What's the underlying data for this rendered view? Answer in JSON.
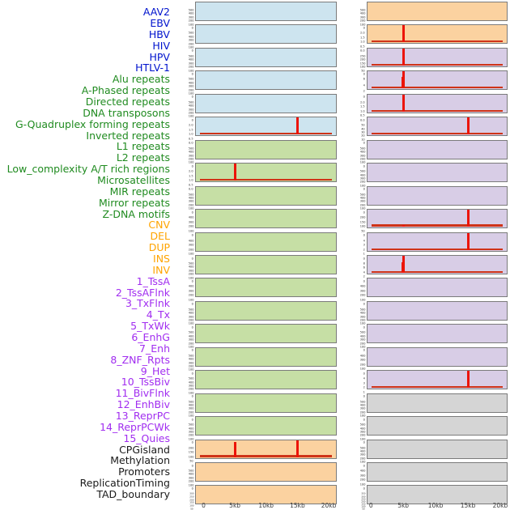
{
  "figure_title": "",
  "colors": {
    "label_virus": "#0013cd",
    "label_repeat": "#208b20",
    "label_variant": "#ffa400",
    "label_chromatin": "#a12df0",
    "label_other": "#1a1a1a",
    "panel_virus": "#cde4ef",
    "panel_repeat": "#c6dfa5",
    "panel_variant": "#fbd2a0",
    "panel_chromatin": "#d8cde6",
    "panel_other": "#d5d5d5",
    "spike_red": "#ec1408",
    "baseline_red": "#cf3318",
    "panel_border": "#7b7b7b",
    "axis_text": "#3c3c3c"
  },
  "chart_data": {
    "type": "bar",
    "description": "Small-multiple density tracks over a 0-20kb window; two panel columns read column-major (tracks 1-22 left, 23-44 right); red bars are feature density spikes, thin red line is near-zero baseline",
    "x_unit": "kb",
    "x_range": [
      0,
      20
    ],
    "x_ticks": [
      "0",
      "5kb",
      "10kb",
      "15kb",
      "20kb"
    ],
    "grid": false,
    "legend_position": "left-label-column",
    "tracks": [
      {
        "label": "AAV2",
        "group": "virus",
        "y_ticks": [
          "500",
          "400",
          "300",
          "200",
          "100",
          "0"
        ],
        "spikes": [],
        "baseline": false
      },
      {
        "label": "EBV",
        "group": "virus",
        "y_ticks": [
          "500",
          "400",
          "300",
          "200",
          "100",
          "0"
        ],
        "spikes": [],
        "baseline": false
      },
      {
        "label": "HBV",
        "group": "virus",
        "y_ticks": [
          "500",
          "400",
          "300",
          "200",
          "100",
          "0"
        ],
        "spikes": [],
        "baseline": false
      },
      {
        "label": "HIV",
        "group": "virus",
        "y_ticks": [
          "500",
          "400",
          "300",
          "200",
          "100",
          "0"
        ],
        "spikes": [],
        "baseline": false
      },
      {
        "label": "HPV",
        "group": "virus",
        "y_ticks": [
          "500",
          "400",
          "300",
          "200",
          "100",
          "0"
        ],
        "spikes": [],
        "baseline": false
      },
      {
        "label": "HTLV-1",
        "group": "virus",
        "y_ticks": [
          "2.0",
          "1.5",
          "1.0",
          "0.5",
          "0.0"
        ],
        "spikes": [
          {
            "x_kb": 15,
            "value": 2.0
          }
        ],
        "baseline": true
      },
      {
        "label": "Alu repeats",
        "group": "repeat",
        "y_ticks": [
          "500",
          "400",
          "300",
          "200",
          "100",
          "0"
        ],
        "spikes": [],
        "baseline": false
      },
      {
        "label": "A-Phased repeats",
        "group": "repeat",
        "y_ticks": [
          "2.0",
          "1.5",
          "1.0",
          "0.5",
          "0.0"
        ],
        "spikes": [
          {
            "x_kb": 5,
            "value": 2.0
          }
        ],
        "baseline": true
      },
      {
        "label": "Directed repeats",
        "group": "repeat",
        "y_ticks": [
          "500",
          "400",
          "300",
          "200",
          "100",
          "0"
        ],
        "spikes": [],
        "baseline": false
      },
      {
        "label": "DNA transposons",
        "group": "repeat",
        "y_ticks": [
          "400",
          "300",
          "200",
          "100",
          "0"
        ],
        "spikes": [],
        "baseline": false
      },
      {
        "label": "G-Quadruplex forming repeats",
        "group": "repeat",
        "y_ticks": [
          "400",
          "300",
          "200",
          "100",
          "0"
        ],
        "spikes": [],
        "baseline": false
      },
      {
        "label": "Inverted repeats",
        "group": "repeat",
        "y_ticks": [
          "500",
          "400",
          "300",
          "200",
          "100",
          "0"
        ],
        "spikes": [],
        "baseline": false
      },
      {
        "label": "L1 repeats",
        "group": "repeat",
        "y_ticks": [
          "400",
          "300",
          "200",
          "100",
          "0"
        ],
        "spikes": [],
        "baseline": false
      },
      {
        "label": "L2 repeats",
        "group": "repeat",
        "y_ticks": [
          "500",
          "400",
          "300",
          "200",
          "100",
          "0"
        ],
        "spikes": [],
        "baseline": false
      },
      {
        "label": "Low_complexity A/T rich regions",
        "group": "repeat",
        "y_ticks": [
          "500",
          "400",
          "300",
          "200",
          "100",
          "0"
        ],
        "spikes": [],
        "baseline": false
      },
      {
        "label": "Microsatellites",
        "group": "repeat",
        "y_ticks": [
          "500",
          "400",
          "300",
          "200",
          "100",
          "0"
        ],
        "spikes": [],
        "baseline": false
      },
      {
        "label": "MIR repeats",
        "group": "repeat",
        "y_ticks": [
          "500",
          "400",
          "300",
          "200",
          "100",
          "0"
        ],
        "spikes": [],
        "baseline": false
      },
      {
        "label": "Mirror repeats",
        "group": "repeat",
        "y_ticks": [
          "500",
          "400",
          "300",
          "200",
          "100",
          "0"
        ],
        "spikes": [],
        "baseline": false
      },
      {
        "label": "Z-DNA motifs",
        "group": "repeat",
        "y_ticks": [
          "500",
          "400",
          "300",
          "200",
          "100",
          "0"
        ],
        "spikes": [],
        "baseline": false
      },
      {
        "label": "CNV",
        "group": "variant",
        "y_ticks": [
          "200",
          "150",
          "100",
          "50",
          "0"
        ],
        "spikes": [
          {
            "x_kb": 5,
            "value": 175
          },
          {
            "x_kb": 15,
            "value": 200
          }
        ],
        "baseline": true
      },
      {
        "label": "DEL",
        "group": "variant",
        "y_ticks": [
          "500",
          "400",
          "300",
          "200",
          "100",
          "0"
        ],
        "spikes": [],
        "baseline": false
      },
      {
        "label": "DUP",
        "group": "variant",
        "y_ticks": [
          "300",
          "250",
          "200",
          "150",
          "100",
          "50",
          "0"
        ],
        "spikes": [],
        "baseline": false
      },
      {
        "label": "INS",
        "group": "variant",
        "y_ticks": [
          "500",
          "400",
          "300",
          "200",
          "100",
          "0"
        ],
        "spikes": [],
        "baseline": false
      },
      {
        "label": "INV",
        "group": "variant",
        "y_ticks": [
          "2.0",
          "1.5",
          "1.0",
          "0.5",
          "0.0"
        ],
        "spikes": [
          {
            "x_kb": 5,
            "value": 2.0
          }
        ],
        "baseline": true
      },
      {
        "label": "1_TssA",
        "group": "chromatin",
        "y_ticks": [
          "250",
          "200",
          "150",
          "100",
          "50",
          "0"
        ],
        "spikes": [
          {
            "x_kb": 5,
            "value": 250
          }
        ],
        "baseline": true
      },
      {
        "label": "2_TssAFlnk",
        "group": "chromatin",
        "y_ticks": [
          "6",
          "4",
          "2",
          "0"
        ],
        "spikes": [
          {
            "x_kb": 4.8,
            "value": 4
          },
          {
            "x_kb": 5,
            "value": 6
          }
        ],
        "baseline": true
      },
      {
        "label": "3_TxFlnk",
        "group": "chromatin",
        "y_ticks": [
          "2.0",
          "1.5",
          "1.0",
          "0.5",
          "0.0"
        ],
        "spikes": [
          {
            "x_kb": 5,
            "value": 2.0
          }
        ],
        "baseline": true
      },
      {
        "label": "4_Tx",
        "group": "chromatin",
        "y_ticks": [
          "50",
          "40",
          "30",
          "20",
          "10",
          "0"
        ],
        "spikes": [
          {
            "x_kb": 15,
            "value": 50
          }
        ],
        "baseline": true
      },
      {
        "label": "5_TxWk",
        "group": "chromatin",
        "y_ticks": [
          "500",
          "400",
          "300",
          "200",
          "100",
          "0"
        ],
        "spikes": [],
        "baseline": false
      },
      {
        "label": "6_EnhG",
        "group": "chromatin",
        "y_ticks": [
          "500",
          "400",
          "300",
          "200",
          "100",
          "0"
        ],
        "spikes": [],
        "baseline": false
      },
      {
        "label": "7_Enh",
        "group": "chromatin",
        "y_ticks": [
          "500",
          "400",
          "300",
          "200",
          "100",
          "0"
        ],
        "spikes": [],
        "baseline": false
      },
      {
        "label": "8_ZNF_Rpts",
        "group": "chromatin",
        "y_ticks": [
          "200",
          "150",
          "100",
          "50",
          "0"
        ],
        "spikes": [
          {
            "x_kb": 5,
            "value": 15
          },
          {
            "x_kb": 15,
            "value": 200
          }
        ],
        "baseline": true
      },
      {
        "label": "9_Het",
        "group": "chromatin",
        "y_ticks": [
          "4",
          "3",
          "2",
          "1",
          "0"
        ],
        "spikes": [
          {
            "x_kb": 15,
            "value": 4
          }
        ],
        "baseline": true
      },
      {
        "label": "10_TssBiv",
        "group": "chromatin",
        "y_ticks": [
          "8",
          "6",
          "4",
          "2",
          "0"
        ],
        "spikes": [
          {
            "x_kb": 4.8,
            "value": 5
          },
          {
            "x_kb": 5,
            "value": 8
          }
        ],
        "baseline": true
      },
      {
        "label": "11_BivFlnk",
        "group": "chromatin",
        "y_ticks": [
          "400",
          "300",
          "200",
          "100",
          "0"
        ],
        "spikes": [],
        "baseline": false
      },
      {
        "label": "12_EnhBiv",
        "group": "chromatin",
        "y_ticks": [
          "500",
          "400",
          "300",
          "200",
          "100",
          "0"
        ],
        "spikes": [],
        "baseline": false
      },
      {
        "label": "13_ReprPC",
        "group": "chromatin",
        "y_ticks": [
          "500",
          "400",
          "300",
          "200",
          "100",
          "0"
        ],
        "spikes": [],
        "baseline": false
      },
      {
        "label": "14_ReprPCWk",
        "group": "chromatin",
        "y_ticks": [
          "400",
          "300",
          "200",
          "100",
          "0"
        ],
        "spikes": [],
        "baseline": false
      },
      {
        "label": "15_Quies",
        "group": "chromatin",
        "y_ticks": [
          "4",
          "3",
          "2",
          "1",
          "0"
        ],
        "spikes": [
          {
            "x_kb": 15,
            "value": 4
          }
        ],
        "baseline": true
      },
      {
        "label": "CPGisland",
        "group": "other",
        "y_ticks": [
          "500",
          "400",
          "300",
          "200",
          "100",
          "0"
        ],
        "spikes": [],
        "baseline": false
      },
      {
        "label": "Methylation",
        "group": "other",
        "y_ticks": [
          "500",
          "400",
          "300",
          "200",
          "100",
          "0"
        ],
        "spikes": [],
        "baseline": false
      },
      {
        "label": "Promoters",
        "group": "other",
        "y_ticks": [
          "500",
          "400",
          "300",
          "200",
          "100",
          "0"
        ],
        "spikes": [],
        "baseline": false
      },
      {
        "label": "ReplicationTiming",
        "group": "other",
        "y_ticks": [
          "400",
          "300",
          "200",
          "100",
          "0"
        ],
        "spikes": [],
        "baseline": false
      },
      {
        "label": "TAD_boundary",
        "group": "other",
        "y_ticks": [
          "350",
          "300",
          "250",
          "200",
          "150",
          "100",
          "50",
          "0"
        ],
        "spikes": [],
        "baseline": false
      }
    ]
  }
}
